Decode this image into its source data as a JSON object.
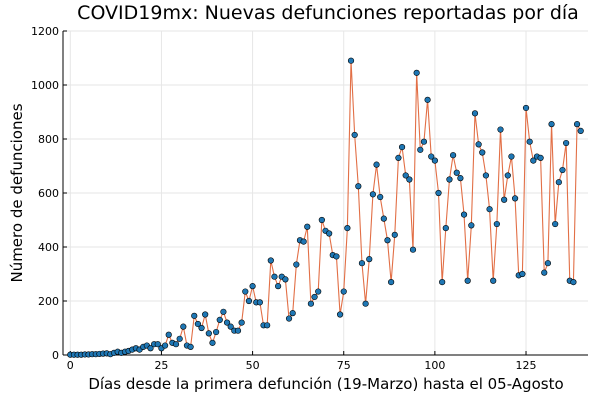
{
  "chart_data": {
    "type": "scatter",
    "title": "COVID19mx: Nuevas defunciones reportadas por día",
    "xlabel": "Días desde la primera defunción (19-Marzo) hasta el 05-Agosto",
    "ylabel": "Número de defunciones",
    "xlim": [
      -2,
      142
    ],
    "ylim": [
      0,
      1200
    ],
    "x_ticks": [
      0,
      25,
      50,
      75,
      100,
      125
    ],
    "y_ticks": [
      0,
      200,
      400,
      600,
      800,
      1000,
      1200
    ],
    "grid": true,
    "legend": "none",
    "line_color": "#e26f46",
    "marker_color": "#1f77b4",
    "series": [
      {
        "x": [
          0,
          1,
          2,
          3,
          4,
          5,
          6,
          7,
          8,
          9,
          10,
          11,
          12,
          13,
          14,
          15,
          16,
          17,
          18,
          19,
          20,
          21,
          22,
          23,
          24,
          25,
          26,
          27,
          28,
          29,
          30,
          31,
          32,
          33,
          34,
          35,
          36,
          37,
          38,
          39,
          40,
          41,
          42,
          43,
          44,
          45,
          46,
          47,
          48,
          49,
          50,
          51,
          52,
          53,
          54,
          55,
          56,
          57,
          58,
          59,
          60,
          61,
          62,
          63,
          64,
          65,
          66,
          67,
          68,
          69,
          70,
          71,
          72,
          73,
          74,
          75,
          76,
          77,
          78,
          79,
          80,
          81,
          82,
          83,
          84,
          85,
          86,
          87,
          88,
          89,
          90,
          91,
          92,
          93,
          94,
          95,
          96,
          97,
          98,
          99,
          100,
          101,
          102,
          103,
          104,
          105,
          106,
          107,
          108,
          109,
          110,
          111,
          112,
          113,
          114,
          115,
          116,
          117,
          118,
          119,
          120,
          121,
          122,
          123,
          124,
          125,
          126,
          127,
          128,
          129,
          130,
          131,
          132,
          133,
          134,
          135,
          136,
          137,
          138,
          139,
          140
        ],
        "y": [
          1,
          1,
          1,
          1,
          2,
          2,
          3,
          3,
          4,
          5,
          6,
          3,
          8,
          12,
          8,
          12,
          15,
          20,
          25,
          20,
          30,
          35,
          25,
          40,
          40,
          25,
          35,
          75,
          45,
          40,
          60,
          105,
          35,
          30,
          145,
          115,
          100,
          150,
          80,
          45,
          85,
          130,
          160,
          120,
          105,
          90,
          90,
          120,
          235,
          200,
          255,
          195,
          195,
          110,
          110,
          350,
          290,
          255,
          290,
          280,
          135,
          155,
          335,
          425,
          420,
          475,
          190,
          215,
          235,
          500,
          460,
          450,
          370,
          365,
          150,
          235,
          470,
          1090,
          815,
          625,
          340,
          190,
          355,
          595,
          705,
          585,
          505,
          425,
          270,
          445,
          730,
          770,
          665,
          650,
          390,
          1045,
          760,
          790,
          945,
          735,
          720,
          600,
          270,
          470,
          650,
          740,
          675,
          655,
          520,
          275,
          480,
          895,
          780,
          750,
          665,
          540,
          275,
          485,
          835,
          575,
          665,
          735,
          580,
          295,
          300,
          915,
          790,
          720,
          735,
          730,
          305,
          340,
          855,
          485,
          640,
          685,
          785,
          275,
          270,
          855,
          830
        ]
      }
    ]
  }
}
